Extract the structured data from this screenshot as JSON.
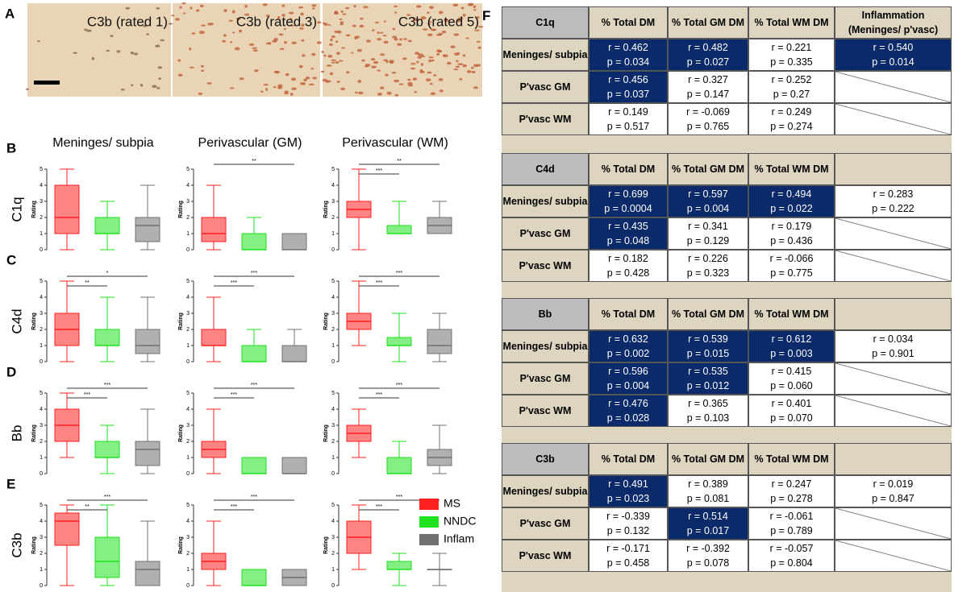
{
  "panel_a": {
    "letter": "A",
    "images": [
      "C3b (rated 1)",
      "C3b (rated 3)",
      "C3b (rated 5)"
    ]
  },
  "panel_plots": {
    "columns": [
      "Meninges/ subpia",
      "Perivascular (GM)",
      "Perivascular (WM)"
    ],
    "axis_label": "Rating",
    "ylim": [
      0,
      5
    ],
    "yticks": [
      0,
      1,
      2,
      3,
      4,
      5
    ],
    "groups": [
      {
        "name": "MS",
        "color": "#ff2020"
      },
      {
        "name": "NNDC",
        "color": "#20e020"
      },
      {
        "name": "Inflam",
        "color": "#707070"
      }
    ],
    "rows": [
      {
        "letter": "B",
        "marker": "C1q",
        "plots": [
          {
            "boxes": [
              {
                "min": 0,
                "q1": 1,
                "median": 2,
                "q3": 4,
                "max": 5
              },
              {
                "min": 0,
                "q1": 1,
                "median": 1,
                "q3": 2,
                "max": 3
              },
              {
                "min": 0,
                "q1": 0.5,
                "median": 1.5,
                "q3": 2,
                "max": 4
              }
            ]
          },
          {
            "boxes": [
              {
                "min": 0,
                "q1": 0.5,
                "median": 1,
                "q3": 2,
                "max": 4
              },
              {
                "min": 0,
                "q1": 0,
                "median": 0,
                "q3": 1,
                "max": 2
              },
              {
                "min": 0,
                "q1": 0,
                "median": 0,
                "q3": 1,
                "max": 1
              }
            ],
            "sig": {
              "ms_inflam": "**"
            }
          },
          {
            "boxes": [
              {
                "min": 0,
                "q1": 2,
                "median": 2.5,
                "q3": 3,
                "max": 5
              },
              {
                "min": 1,
                "q1": 1,
                "median": 1,
                "q3": 1.5,
                "max": 3
              },
              {
                "min": 1,
                "q1": 1,
                "median": 1.5,
                "q3": 2,
                "max": 3
              }
            ],
            "sig": {
              "ms_nndc": "***",
              "ms_inflam": "**"
            }
          }
        ]
      },
      {
        "letter": "C",
        "marker": "C4d",
        "plots": [
          {
            "boxes": [
              {
                "min": 0,
                "q1": 1,
                "median": 2,
                "q3": 3,
                "max": 5
              },
              {
                "min": 0,
                "q1": 1,
                "median": 1,
                "q3": 2,
                "max": 4
              },
              {
                "min": 0,
                "q1": 0.5,
                "median": 1,
                "q3": 2,
                "max": 4
              }
            ],
            "sig": {
              "ms_nndc": "**",
              "ms_inflam": "*"
            }
          },
          {
            "boxes": [
              {
                "min": 0,
                "q1": 1,
                "median": 1,
                "q3": 2,
                "max": 4
              },
              {
                "min": 0,
                "q1": 0,
                "median": 0,
                "q3": 1,
                "max": 2
              },
              {
                "min": 0,
                "q1": 0,
                "median": 0,
                "q3": 1,
                "max": 2
              }
            ],
            "sig": {
              "ms_nndc": "***",
              "ms_inflam": "***"
            }
          },
          {
            "boxes": [
              {
                "min": 1,
                "q1": 2,
                "median": 2.5,
                "q3": 3,
                "max": 5
              },
              {
                "min": 0,
                "q1": 1,
                "median": 1,
                "q3": 1.5,
                "max": 3
              },
              {
                "min": 0,
                "q1": 0.5,
                "median": 1,
                "q3": 2,
                "max": 3
              }
            ],
            "sig": {
              "ms_nndc": "***",
              "ms_inflam": "***"
            }
          }
        ]
      },
      {
        "letter": "D",
        "marker": "Bb",
        "plots": [
          {
            "boxes": [
              {
                "min": 1,
                "q1": 2,
                "median": 3,
                "q3": 4,
                "max": 5
              },
              {
                "min": 0,
                "q1": 1,
                "median": 1,
                "q3": 2,
                "max": 3
              },
              {
                "min": 0,
                "q1": 0.5,
                "median": 1.5,
                "q3": 2,
                "max": 4
              }
            ],
            "sig": {
              "ms_nndc": "***",
              "ms_inflam": "***"
            }
          },
          {
            "boxes": [
              {
                "min": 0,
                "q1": 1,
                "median": 1.5,
                "q3": 2,
                "max": 4
              },
              {
                "min": 0,
                "q1": 0,
                "median": 0,
                "q3": 1,
                "max": 1
              },
              {
                "min": 0,
                "q1": 0,
                "median": 0,
                "q3": 1,
                "max": 1
              }
            ],
            "sig": {
              "ms_nndc": "***",
              "ms_inflam": "***"
            }
          },
          {
            "boxes": [
              {
                "min": 1,
                "q1": 2,
                "median": 2.5,
                "q3": 3,
                "max": 4
              },
              {
                "min": 0,
                "q1": 0,
                "median": 0,
                "q3": 1,
                "max": 2
              },
              {
                "min": 0,
                "q1": 0.5,
                "median": 1,
                "q3": 1.5,
                "max": 3
              }
            ],
            "sig": {
              "ms_nndc": "***",
              "ms_inflam": "***"
            }
          }
        ]
      },
      {
        "letter": "E",
        "marker": "C3b",
        "plots": [
          {
            "boxes": [
              {
                "min": 0,
                "q1": 2.5,
                "median": 4,
                "q3": 4.5,
                "max": 5
              },
              {
                "min": 0,
                "q1": 0.5,
                "median": 1.5,
                "q3": 3,
                "max": 5
              },
              {
                "min": 0,
                "q1": 0,
                "median": 1,
                "q3": 1.5,
                "max": 4
              }
            ],
            "sig": {
              "ms_nndc": "**",
              "ms_inflam": "***"
            }
          },
          {
            "boxes": [
              {
                "min": 0,
                "q1": 1,
                "median": 1.5,
                "q3": 2,
                "max": 4
              },
              {
                "min": 0,
                "q1": 0,
                "median": 0,
                "q3": 1,
                "max": 1
              },
              {
                "min": 0,
                "q1": 0,
                "median": 0.5,
                "q3": 1,
                "max": 1
              }
            ],
            "sig": {
              "ms_nndc": "***",
              "ms_inflam": "***"
            }
          },
          {
            "boxes": [
              {
                "min": 1,
                "q1": 2,
                "median": 3,
                "q3": 4,
                "max": 5
              },
              {
                "min": 0,
                "q1": 1,
                "median": 1,
                "q3": 1.5,
                "max": 2
              },
              {
                "min": 0,
                "q1": 1,
                "median": 1,
                "q3": 1,
                "max": 2
              }
            ],
            "sig": {
              "ms_nndc": "***",
              "ms_inflam": "***"
            }
          }
        ]
      }
    ]
  },
  "panel_f": {
    "letter": "F",
    "blocks": [
      {
        "header": [
          "C1q",
          "% Total DM",
          "% Total GM DM",
          "% Total WM DM",
          "Inflammation (Meninges/ p'vasc)"
        ],
        "rows": [
          {
            "label": "Meninges/ subpia",
            "cells": [
              {
                "r": "r = 0.462",
                "p": "p = 0.034",
                "hl": true
              },
              {
                "r": "r = 0.482",
                "p": "p = 0.027",
                "hl": true
              },
              {
                "r": "r = 0.221",
                "p": "p = 0.335",
                "hl": false
              },
              {
                "r": "r = 0.540",
                "p": "p = 0.014",
                "hl": true
              }
            ]
          },
          {
            "label": "P'vasc GM",
            "cells": [
              {
                "r": "r = 0.456",
                "p": "p = 0.037",
                "hl": true
              },
              {
                "r": "r = 0.327",
                "p": "p = 0.147",
                "hl": false
              },
              {
                "r": "r = 0.252",
                "p": "p = 0.27",
                "hl": false
              }
            ]
          },
          {
            "label": "P'vasc WM",
            "cells": [
              {
                "r": "r = 0.149",
                "p": "p = 0.517",
                "hl": false
              },
              {
                "r": "r = -0.069",
                "p": "p = 0.765",
                "hl": false
              },
              {
                "r": "r = 0.249",
                "p": "p = 0.274",
                "hl": false
              }
            ]
          }
        ]
      },
      {
        "header": [
          "C4d",
          "% Total DM",
          "% Total GM DM",
          "% Total WM DM"
        ],
        "rows": [
          {
            "label": "Meninges/ subpia",
            "cells": [
              {
                "r": "r = 0.699",
                "p": "p = 0.0004",
                "hl": true
              },
              {
                "r": "r = 0.597",
                "p": "p = 0.004",
                "hl": true
              },
              {
                "r": "r = 0.494",
                "p": "p = 0.022",
                "hl": true
              },
              {
                "r": "r = 0.283",
                "p": "p = 0.222",
                "hl": false
              }
            ]
          },
          {
            "label": "P'vasc GM",
            "cells": [
              {
                "r": "r = 0.435",
                "p": "p = 0.048",
                "hl": true
              },
              {
                "r": "r = 0.341",
                "p": "p = 0.129",
                "hl": false
              },
              {
                "r": "r = 0.179",
                "p": "p = 0.436",
                "hl": false
              }
            ]
          },
          {
            "label": "P'vasc WM",
            "cells": [
              {
                "r": "r = 0.182",
                "p": "p = 0.428",
                "hl": false
              },
              {
                "r": "r = 0.226",
                "p": "p = 0.323",
                "hl": false
              },
              {
                "r": "r = -0.066",
                "p": "p = 0.775",
                "hl": false
              }
            ]
          }
        ]
      },
      {
        "header": [
          "Bb",
          "% Total DM",
          "% Total GM DM",
          "% Total WM DM"
        ],
        "rows": [
          {
            "label": "Meninges/ subpia",
            "cells": [
              {
                "r": "r = 0.632",
                "p": "p = 0.002",
                "hl": true
              },
              {
                "r": "r = 0.539",
                "p": "p = 0.015",
                "hl": true
              },
              {
                "r": "r = 0.612",
                "p": "p = 0.003",
                "hl": true
              },
              {
                "r": "r = 0.034",
                "p": "p = 0.901",
                "hl": false
              }
            ]
          },
          {
            "label": "P'vasc GM",
            "cells": [
              {
                "r": "r = 0.596",
                "p": "p = 0.004",
                "hl": true
              },
              {
                "r": "r = 0.535",
                "p": "p = 0.012",
                "hl": true
              },
              {
                "r": "r = 0.415",
                "p": "p = 0.060",
                "hl": false
              }
            ]
          },
          {
            "label": "P'vasc WM",
            "cells": [
              {
                "r": "r = 0.476",
                "p": "p = 0.028",
                "hl": true
              },
              {
                "r": "r = 0.365",
                "p": "p = 0.103",
                "hl": false
              },
              {
                "r": "r = 0.401",
                "p": "p = 0.070",
                "hl": false
              }
            ]
          }
        ]
      },
      {
        "header": [
          "C3b",
          "% Total DM",
          "% Total GM DM",
          "% Total WM DM"
        ],
        "rows": [
          {
            "label": "Meninges/ subpia",
            "cells": [
              {
                "r": "r = 0.491",
                "p": "p = 0.023",
                "hl": true
              },
              {
                "r": "r = 0.389",
                "p": "p = 0.081",
                "hl": false
              },
              {
                "r": "r = 0.247",
                "p": "p = 0.278",
                "hl": false
              },
              {
                "r": "r = 0.019",
                "p": "p = 0.847",
                "hl": false
              }
            ]
          },
          {
            "label": "P'vasc GM",
            "cells": [
              {
                "r": "r = -0.339",
                "p": "p = 0.132",
                "hl": false
              },
              {
                "r": "r = 0.514",
                "p": "p = 0.017",
                "hl": true
              },
              {
                "r": "r = -0.061",
                "p": "p = 0.789",
                "hl": false
              }
            ]
          },
          {
            "label": "P'vasc WM",
            "cells": [
              {
                "r": "r = -0.171",
                "p": "p = 0.458",
                "hl": false
              },
              {
                "r": "r = -0.392",
                "p": "p = 0.078",
                "hl": false
              },
              {
                "r": "r = -0.057",
                "p": "p = 0.804",
                "hl": false
              }
            ]
          }
        ]
      }
    ]
  }
}
